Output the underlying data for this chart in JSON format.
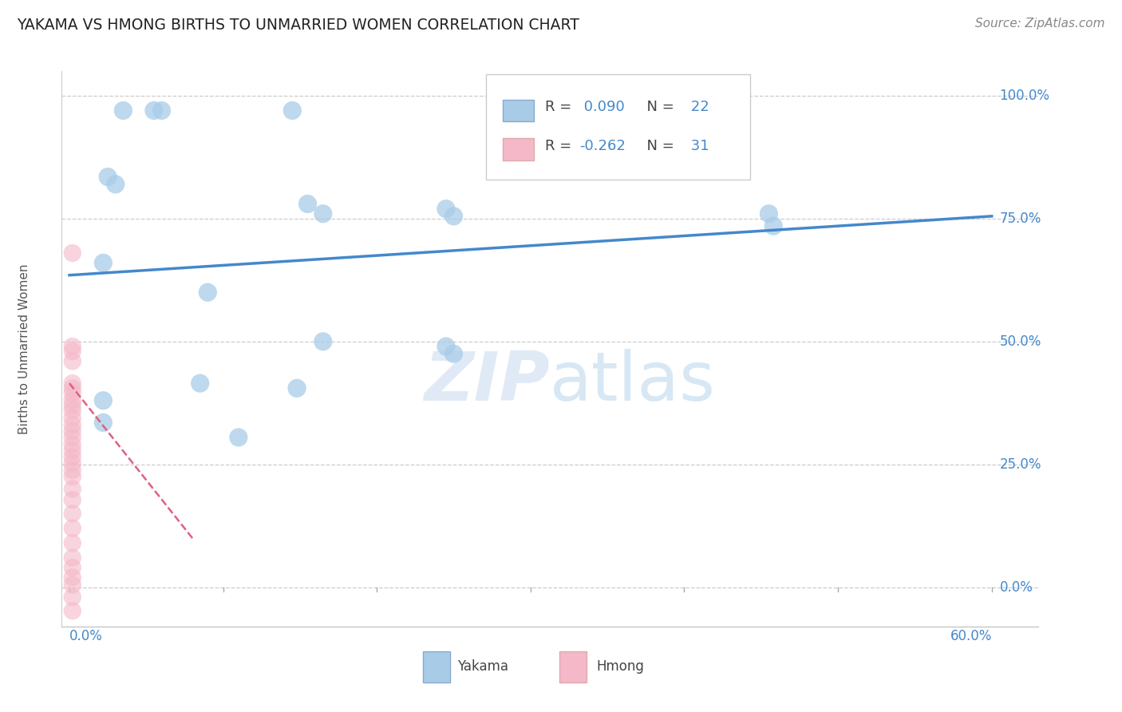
{
  "title": "YAKAMA VS HMONG BIRTHS TO UNMARRIED WOMEN CORRELATION CHART",
  "source": "Source: ZipAtlas.com",
  "ylabel": "Births to Unmarried Women",
  "watermark_zip": "ZIP",
  "watermark_atlas": "atlas",
  "yakama_R": "0.090",
  "yakama_N": "22",
  "hmong_R": "-0.262",
  "hmong_N": "31",
  "ytick_labels": [
    "0.0%",
    "25.0%",
    "50.0%",
    "75.0%",
    "100.0%"
  ],
  "ytick_values": [
    0.0,
    0.25,
    0.5,
    0.75,
    1.0
  ],
  "x_left_label": "0.0%",
  "x_right_label": "60.0%",
  "plot_bgcolor": "#ffffff",
  "grid_color": "#cccccc",
  "yakama_color": "#a8cce8",
  "hmong_color": "#f4b8c8",
  "yakama_line_color": "#4488cc",
  "hmong_line_color": "#e06080",
  "label_color": "#4488cc",
  "title_color": "#222222",
  "source_color": "#888888",
  "text_color": "#444444",
  "yakama_points_x": [
    0.035,
    0.055,
    0.06,
    0.145,
    0.025,
    0.03,
    0.155,
    0.165,
    0.245,
    0.25,
    0.022,
    0.09,
    0.165,
    0.25,
    0.085,
    0.148,
    0.022,
    0.455,
    0.458,
    0.022,
    0.11,
    0.245
  ],
  "yakama_points_y": [
    0.97,
    0.97,
    0.97,
    0.97,
    0.835,
    0.82,
    0.78,
    0.76,
    0.77,
    0.755,
    0.66,
    0.6,
    0.5,
    0.475,
    0.415,
    0.405,
    0.38,
    0.76,
    0.735,
    0.335,
    0.305,
    0.49
  ],
  "hmong_points_x": [
    0.002,
    0.002,
    0.002,
    0.002,
    0.002,
    0.002,
    0.002,
    0.002,
    0.002,
    0.002,
    0.002,
    0.002,
    0.002,
    0.002,
    0.002,
    0.002,
    0.002,
    0.002,
    0.002,
    0.002,
    0.002,
    0.002,
    0.002,
    0.002,
    0.002,
    0.002,
    0.002,
    0.002,
    0.002,
    0.002,
    0.002
  ],
  "hmong_points_y": [
    0.68,
    0.49,
    0.48,
    0.46,
    0.415,
    0.405,
    0.395,
    0.38,
    0.37,
    0.36,
    0.345,
    0.33,
    0.318,
    0.305,
    0.29,
    0.278,
    0.265,
    0.252,
    0.238,
    0.225,
    0.2,
    0.178,
    0.15,
    0.12,
    0.09,
    0.06,
    0.04,
    0.02,
    0.005,
    -0.02,
    -0.048
  ],
  "yakama_line_x": [
    0.0,
    0.6
  ],
  "yakama_line_y": [
    0.635,
    0.755
  ],
  "hmong_line_x": [
    0.0,
    0.08
  ],
  "hmong_line_y": [
    0.415,
    0.1
  ],
  "xmin": 0.0,
  "xmax": 0.6,
  "ymin": -0.08,
  "ymax": 1.05
}
